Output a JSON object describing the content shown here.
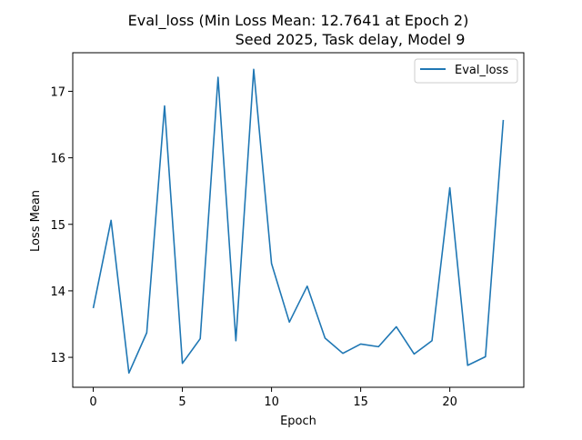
{
  "chart_data": {
    "type": "line",
    "title_line1": "Eval_loss (Min Loss Mean: 12.7641 at Epoch 2)",
    "title_line2": "Seed 2025, Task delay, Model 9",
    "xlabel": "Epoch",
    "ylabel": "Loss Mean",
    "xlim": [
      -1.15,
      24.15
    ],
    "ylim": [
      12.55,
      17.58
    ],
    "x_ticks": [
      0,
      5,
      10,
      15,
      20
    ],
    "y_ticks": [
      13,
      14,
      15,
      16,
      17
    ],
    "grid": false,
    "legend_position": "upper right",
    "series": [
      {
        "name": "Eval_loss",
        "color": "#1f77b4",
        "x": [
          0,
          1,
          2,
          3,
          4,
          5,
          6,
          7,
          8,
          9,
          10,
          11,
          12,
          13,
          14,
          15,
          16,
          17,
          18,
          19,
          20,
          21,
          22,
          23
        ],
        "values": [
          13.74,
          15.06,
          12.7641,
          13.37,
          16.78,
          12.91,
          13.28,
          17.21,
          13.25,
          17.33,
          14.41,
          13.53,
          14.07,
          13.29,
          13.06,
          13.2,
          13.16,
          13.46,
          13.05,
          13.25,
          15.55,
          12.88,
          13.01,
          16.57
        ]
      }
    ]
  }
}
